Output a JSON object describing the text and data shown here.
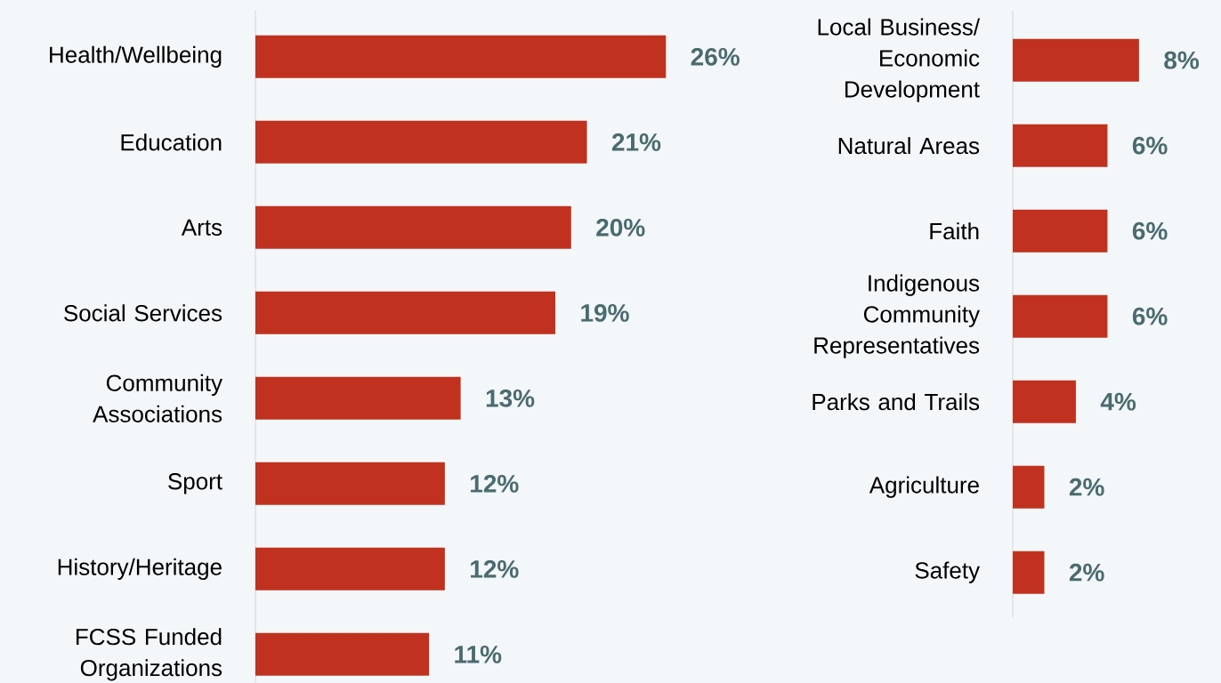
{
  "chart_data": [
    {
      "type": "bar",
      "orientation": "horizontal",
      "color": "#c0321f",
      "categories": [
        "Health/Wellbeing",
        "Education",
        "Arts",
        "Social Services",
        "Community Associations",
        "Sport",
        "History/Heritage",
        "FCSS Funded Organizations"
      ],
      "values": [
        26,
        21,
        20,
        19,
        13,
        12,
        12,
        11
      ],
      "value_labels": [
        "26%",
        "21%",
        "20%",
        "19%",
        "13%",
        "12%",
        "12%",
        "11%"
      ]
    },
    {
      "type": "bar",
      "orientation": "horizontal",
      "color": "#c0321f",
      "categories": [
        "Local Business/ Economic Development",
        "Natural Areas",
        "Faith",
        "Indigenous Community Representatives",
        "Parks and Trails",
        "Agriculture",
        "Safety"
      ],
      "values": [
        8,
        6,
        6,
        6,
        4,
        2,
        2
      ],
      "value_labels": [
        "8%",
        "6%",
        "6%",
        "6%",
        "4%",
        "2%",
        "2%"
      ]
    }
  ]
}
